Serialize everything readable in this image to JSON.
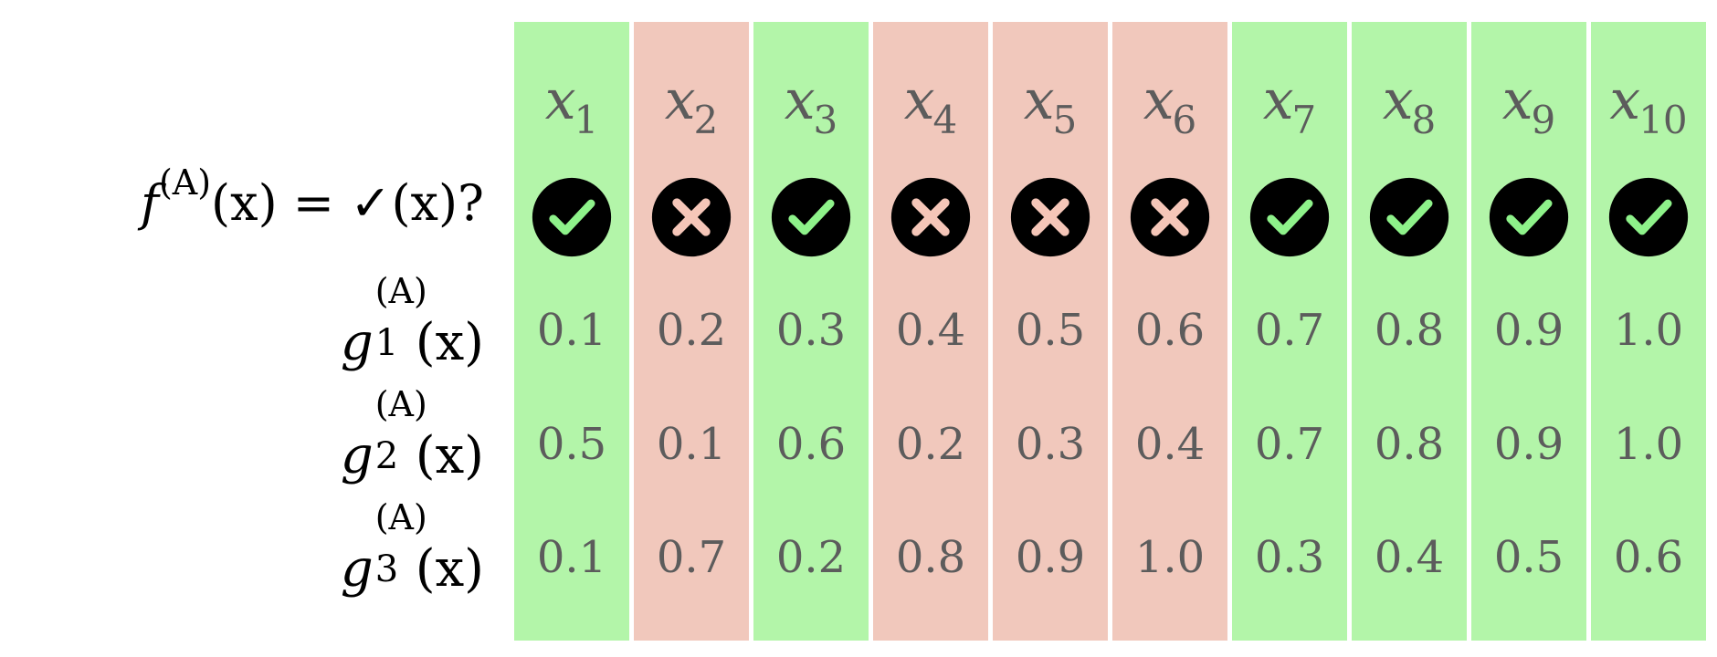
{
  "columns": [
    {
      "var": "x",
      "sub": "1",
      "status": "check"
    },
    {
      "var": "x",
      "sub": "2",
      "status": "cross"
    },
    {
      "var": "x",
      "sub": "3",
      "status": "check"
    },
    {
      "var": "x",
      "sub": "4",
      "status": "cross"
    },
    {
      "var": "x",
      "sub": "5",
      "status": "cross"
    },
    {
      "var": "x",
      "sub": "6",
      "status": "cross"
    },
    {
      "var": "x",
      "sub": "7",
      "status": "check"
    },
    {
      "var": "x",
      "sub": "8",
      "status": "check"
    },
    {
      "var": "x",
      "sub": "9",
      "status": "check"
    },
    {
      "var": "x",
      "sub": "10",
      "status": "check"
    }
  ],
  "labels": {
    "f_row": {
      "fn": "f",
      "sup": "(A)",
      "rest": "(x) = ✓(x)?"
    },
    "g_rows": [
      {
        "fn": "g",
        "sub": "1",
        "sup": "(A)",
        "arg": "(x)"
      },
      {
        "fn": "g",
        "sub": "2",
        "sup": "(A)",
        "arg": "(x)"
      },
      {
        "fn": "g",
        "sub": "3",
        "sup": "(A)",
        "arg": "(x)"
      }
    ]
  },
  "g_values": [
    [
      "0.1",
      "0.2",
      "0.3",
      "0.4",
      "0.5",
      "0.6",
      "0.7",
      "0.8",
      "0.9",
      "1.0"
    ],
    [
      "0.5",
      "0.1",
      "0.6",
      "0.2",
      "0.3",
      "0.4",
      "0.7",
      "0.8",
      "0.9",
      "1.0"
    ],
    [
      "0.1",
      "0.7",
      "0.2",
      "0.8",
      "0.9",
      "1.0",
      "0.3",
      "0.4",
      "0.5",
      "0.6"
    ]
  ],
  "colors": {
    "check_bg": "#b3f5a9",
    "cross_bg": "#f1c8bc",
    "check_mark": "#8ef28a",
    "cross_mark": "#f5c6b8",
    "circle": "#000000",
    "value_text": "#5c5c5c",
    "label_text": "#000000"
  },
  "icons": {
    "check": "check-circle-icon",
    "cross": "cross-circle-icon"
  }
}
